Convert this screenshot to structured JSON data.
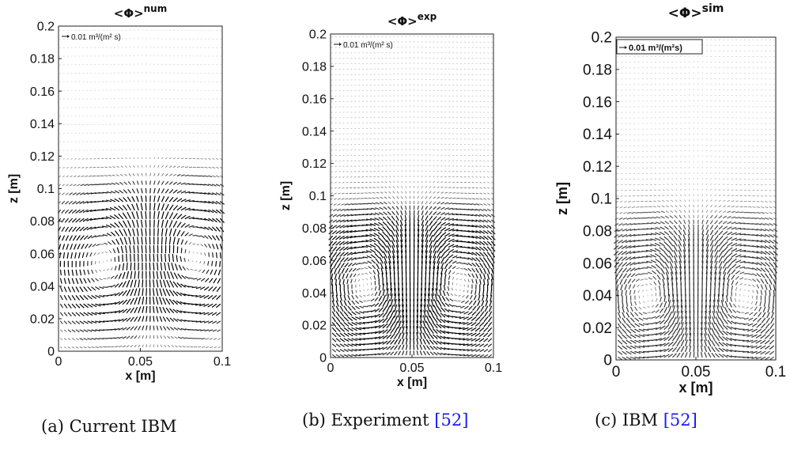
{
  "chart_data": [
    {
      "type": "quiver",
      "title": "<Φ>",
      "title_superscript": "num",
      "xlabel": "x [m]",
      "ylabel": "z [m]",
      "xlim": [
        0,
        0.1
      ],
      "ylim": [
        0,
        0.2
      ],
      "xticks": [
        "0",
        "0.05",
        "0.1"
      ],
      "yticks": [
        "0",
        "0.02",
        "0.04",
        "0.06",
        "0.08",
        "0.1",
        "0.12",
        "0.14",
        "0.16",
        "0.18",
        "0.2"
      ],
      "reference_vector_label": "0.01 m³/(m² s)",
      "reference_vector_magnitude": 0.01,
      "grid": false,
      "vortices": [
        {
          "x": 0.033,
          "z": 0.055,
          "sense": "ccw"
        },
        {
          "x": 0.078,
          "z": 0.058,
          "sense": "cw"
        }
      ],
      "field_top": 0.12,
      "caption": {
        "label": "(a) Current IBM",
        "cite": ""
      }
    },
    {
      "type": "quiver",
      "title": "<Φ>",
      "title_superscript": "exp",
      "xlabel": "x [m]",
      "ylabel": "z [m]",
      "xlim": [
        0,
        0.1
      ],
      "ylim": [
        0,
        0.2
      ],
      "xticks": [
        "0",
        "0.05",
        "0.1"
      ],
      "yticks": [
        "0",
        "0.02",
        "0.04",
        "0.06",
        "0.08",
        "0.1",
        "0.12",
        "0.14",
        "0.16",
        "0.18",
        "0.2"
      ],
      "reference_vector_label": "0.01 m³/(m² s)",
      "reference_vector_magnitude": 0.01,
      "grid": false,
      "vortices": [
        {
          "x": 0.025,
          "z": 0.045,
          "sense": "ccw"
        },
        {
          "x": 0.075,
          "z": 0.045,
          "sense": "cw"
        }
      ],
      "field_top": 0.2,
      "caption": {
        "label": "(b) Experiment ",
        "cite": "[52]"
      }
    },
    {
      "type": "quiver",
      "title": "<Φ>",
      "title_superscript": "sim",
      "xlabel": "x [m]",
      "ylabel": "z [m]",
      "xlim": [
        0,
        0.1
      ],
      "ylim": [
        0,
        0.2
      ],
      "xticks": [
        "0",
        "0.05",
        "0.1"
      ],
      "yticks": [
        "0",
        "0.02",
        "0.04",
        "0.06",
        "0.08",
        "0.1",
        "0.12",
        "0.14",
        "0.16",
        "0.18",
        "0.2"
      ],
      "reference_vector_label": "0.01 m³/(m²s)",
      "reference_vector_magnitude": 0.01,
      "grid": false,
      "vortices": [
        {
          "x": 0.022,
          "z": 0.04,
          "sense": "ccw"
        },
        {
          "x": 0.078,
          "z": 0.04,
          "sense": "cw"
        }
      ],
      "field_top": 0.2,
      "caption": {
        "label": "(c) IBM ",
        "cite": "[52]"
      }
    }
  ]
}
